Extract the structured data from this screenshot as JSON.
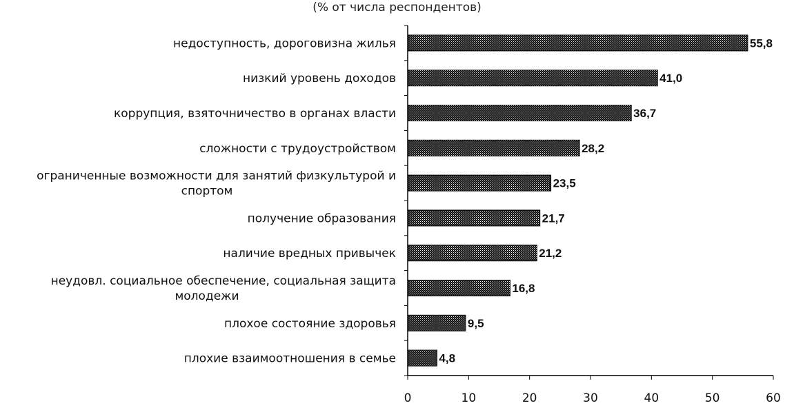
{
  "chart_data": {
    "type": "bar",
    "orientation": "horizontal",
    "subtitle": "(% от числа респондентов)",
    "categories": [
      "недоступность, дороговизна жилья",
      "низкий уровень доходов",
      "коррупция, взяточничество в органах власти",
      "сложности с трудоустройством",
      "ограниченные возможности для занятий физкультурой и спортом",
      "получение образования",
      "наличие вредных привычек",
      "неудовл. социальное обеспечение, социальная защита молодежи",
      "плохое состояние здоровья",
      "плохие взаимоотношения в семье"
    ],
    "category_lines": [
      [
        "недоступность, дороговизна жилья"
      ],
      [
        "низкий уровень доходов"
      ],
      [
        "коррупция, взяточничество в органах власти"
      ],
      [
        "сложности с трудоустройством"
      ],
      [
        "ограниченные возможности для занятий физкультурой и",
        "спортом"
      ],
      [
        "получение образования"
      ],
      [
        "наличие вредных привычек"
      ],
      [
        "неудовл. социальное обеспечение, социальная защита",
        "молодежи"
      ],
      [
        "плохое состояние здоровья"
      ],
      [
        "плохие взаимоотношения в семье"
      ]
    ],
    "values": [
      55.8,
      41.0,
      36.7,
      28.2,
      23.5,
      21.7,
      21.2,
      16.8,
      9.5,
      4.8
    ],
    "value_labels": [
      "55,8",
      "41,0",
      "36,7",
      "28,2",
      "23,5",
      "21,7",
      "21,2",
      "16,8",
      "9,5",
      "4,8"
    ],
    "xlim": [
      0,
      60
    ],
    "xticks": [
      0,
      10,
      20,
      30,
      40,
      50,
      60
    ],
    "grid": false,
    "legend": "none",
    "bar_fill": "dotted pattern",
    "colors": {
      "bar_dark": "#000000",
      "bar_light": "#ffffff",
      "axis": "#000000",
      "text": "#111111"
    }
  }
}
